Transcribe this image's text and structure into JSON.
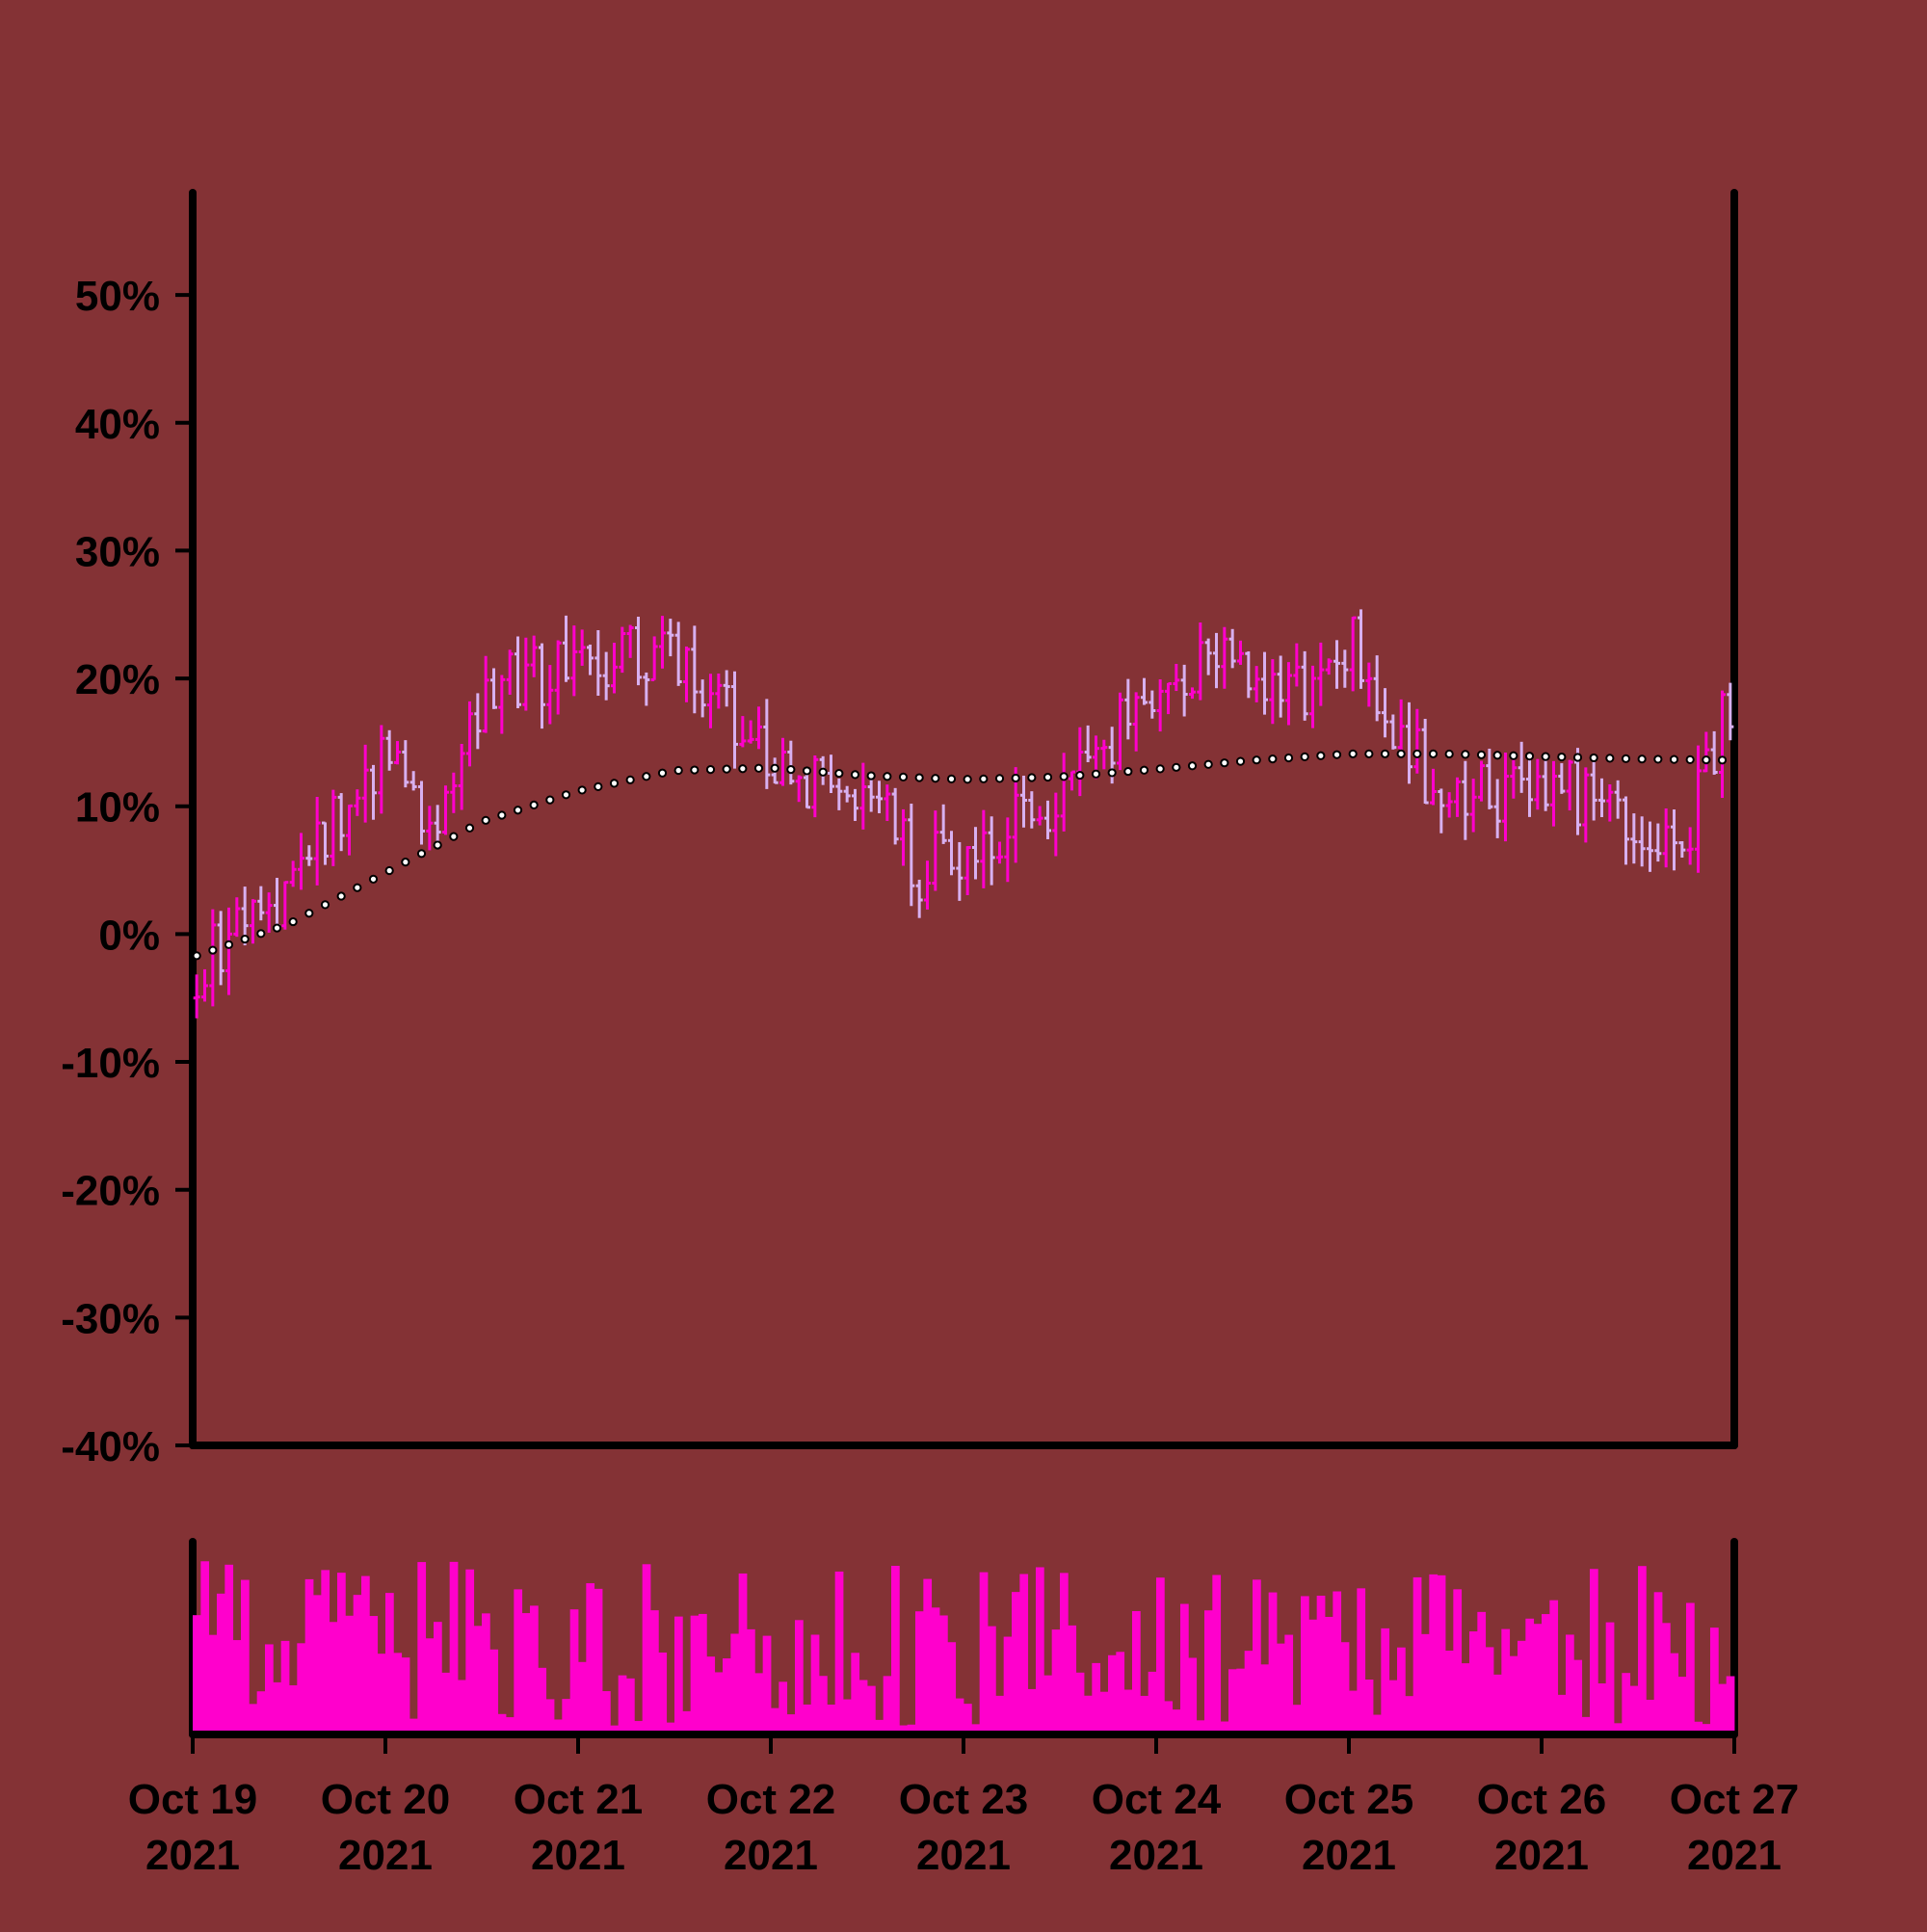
{
  "chart_data": {
    "type": "ohlc",
    "style": {
      "background": "#843235",
      "up_color": "#ff00cc",
      "down_color": "#d8b0f0",
      "volume_color": "#ff00cc",
      "ma_color": "#ffffff",
      "ma_edge_color": "#000000",
      "axis_color": "#000000"
    },
    "y_axis": {
      "format": "percent",
      "ylim": [
        -40,
        58
      ],
      "ticks": [
        -40,
        -30,
        -20,
        -10,
        0,
        10,
        20,
        30,
        40,
        50
      ],
      "tick_labels": [
        "-40%",
        "-30%",
        "-20%",
        "-10%",
        "0%",
        "10%",
        "20%",
        "30%",
        "40%",
        "50%"
      ]
    },
    "x_axis": {
      "range": [
        "2021-10-19T00:00",
        "2021-10-27T00:00"
      ],
      "ticks": [
        {
          "date": "2021-10-19",
          "line1": "Oct 19",
          "line2": "2021"
        },
        {
          "date": "2021-10-20",
          "line1": "Oct 20",
          "line2": "2021"
        },
        {
          "date": "2021-10-21",
          "line1": "Oct 21",
          "line2": "2021"
        },
        {
          "date": "2021-10-22",
          "line1": "Oct 22",
          "line2": "2021"
        },
        {
          "date": "2021-10-23",
          "line1": "Oct 23",
          "line2": "2021"
        },
        {
          "date": "2021-10-24",
          "line1": "Oct 24",
          "line2": "2021"
        },
        {
          "date": "2021-10-25",
          "line1": "Oct 25",
          "line2": "2021"
        },
        {
          "date": "2021-10-26",
          "line1": "Oct 26",
          "line2": "2021"
        },
        {
          "date": "2021-10-27",
          "line1": "Oct 27",
          "line2": "2021"
        }
      ]
    },
    "interval_hours": 1,
    "close_trend": {
      "times": [
        "2021-10-19T00:00",
        "2021-10-19T12:00",
        "2021-10-20T00:00",
        "2021-10-20T06:00",
        "2021-10-20T12:00",
        "2021-10-21T00:00",
        "2021-10-21T12:00",
        "2021-10-21T16:00",
        "2021-10-22T00:00",
        "2021-10-22T12:00",
        "2021-10-22T18:00",
        "2021-10-23T12:00",
        "2021-10-24T00:00",
        "2021-10-24T12:00",
        "2021-10-24T18:00",
        "2021-10-25T00:00",
        "2021-10-25T12:00",
        "2021-10-26T00:00",
        "2021-10-26T12:00",
        "2021-10-26T18:00",
        "2021-10-27T00:00"
      ],
      "close_pct": [
        -3,
        3,
        15,
        8,
        19,
        21,
        22,
        20,
        13,
        11,
        5,
        10,
        20,
        21,
        19,
        23,
        10,
        12,
        9,
        8,
        19
      ]
    },
    "moving_average": {
      "times": [
        "2021-10-19T00:00",
        "2021-10-19T12:00",
        "2021-10-20T00:00",
        "2021-10-20T12:00",
        "2021-10-21T00:00",
        "2021-10-21T12:00",
        "2021-10-22T00:00",
        "2021-10-22T12:00",
        "2021-10-23T00:00",
        "2021-10-23T12:00",
        "2021-10-24T00:00",
        "2021-10-24T12:00",
        "2021-10-25T00:00",
        "2021-10-25T12:00",
        "2021-10-26T00:00",
        "2021-10-26T12:00",
        "2021-10-27T00:00"
      ],
      "values_pct": [
        -1.8,
        0.8,
        4.8,
        8.8,
        11.2,
        12.8,
        13.0,
        12.4,
        12.1,
        12.3,
        12.9,
        13.6,
        14.1,
        14.1,
        13.9,
        13.7,
        13.6
      ]
    },
    "volume": {
      "min_relative": 0.05,
      "max_relative": 1.0
    }
  }
}
